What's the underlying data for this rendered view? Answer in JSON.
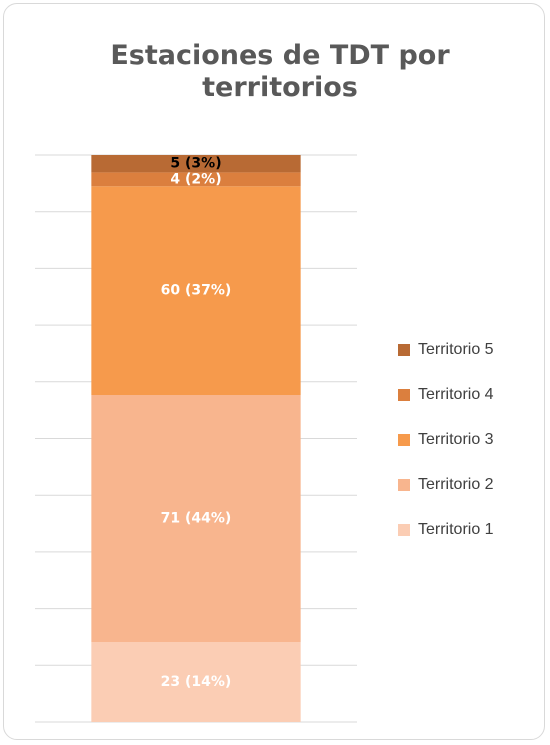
{
  "chart_data": {
    "type": "bar",
    "stacked": true,
    "title": "Estaciones de TDT por territorios",
    "categories": [
      null
    ],
    "series": [
      {
        "name": "Territorio 1",
        "color": "#fbcdb4",
        "label_color": "#ffffff",
        "values": [
          14.11
        ],
        "value_labels": [
          "23 (14%)"
        ]
      },
      {
        "name": "Territorio 2",
        "color": "#f8b58e",
        "label_color": "#ffffff",
        "values": [
          43.56
        ],
        "value_labels": [
          "71 (44%)"
        ]
      },
      {
        "name": "Territorio 3",
        "color": "#f69a4c",
        "label_color": "#ffffff",
        "values": [
          36.81
        ],
        "value_labels": [
          "60 (37%)"
        ]
      },
      {
        "name": "Territorio 4",
        "color": "#db7f3e",
        "label_color": "#ffffff",
        "values": [
          2.45
        ],
        "value_labels": [
          "4 (2%)"
        ]
      },
      {
        "name": "Territorio 5",
        "color": "#b86a34",
        "label_color": "#000000",
        "values": [
          3.07
        ],
        "value_labels": [
          "5 (3%)"
        ]
      }
    ],
    "ylim": [
      0,
      100
    ],
    "yticks": [
      0,
      10,
      20,
      30,
      40,
      50,
      60,
      70,
      80,
      90,
      100
    ],
    "grid": true,
    "legend": "right"
  }
}
